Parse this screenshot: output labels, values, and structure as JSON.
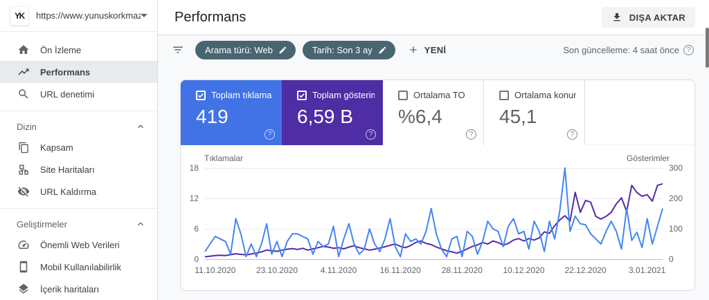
{
  "property": {
    "avatar_monogram": "YK",
    "url": "https://www.yunuskorkmaz.c..."
  },
  "header": {
    "title": "Performans",
    "export_label": "DIŞA AKTAR"
  },
  "sidebar": {
    "top_items": [
      {
        "label": "Ön İzleme"
      },
      {
        "label": "Performans"
      },
      {
        "label": "URL denetimi"
      }
    ],
    "sections": [
      {
        "title": "Dizin",
        "items": [
          {
            "label": "Kapsam"
          },
          {
            "label": "Site Haritaları"
          },
          {
            "label": "URL Kaldırma"
          }
        ]
      },
      {
        "title": "Geliştirmeler",
        "items": [
          {
            "label": "Önemli Web Verileri"
          },
          {
            "label": "Mobil Kullanılabilirlik"
          },
          {
            "label": "İçerik haritaları"
          }
        ]
      }
    ]
  },
  "filters": {
    "chips": [
      {
        "label": "Arama türü: Web"
      },
      {
        "label": "Tarih: Son 3 ay"
      }
    ],
    "new_label": "YENİ",
    "last_update": "Son güncelleme: 4 saat önce",
    "chip_color": "#4a6572"
  },
  "metrics": {
    "cards": [
      {
        "label": "Toplam tıklama s...",
        "value": "419",
        "checked": true,
        "color": "#4273e6"
      },
      {
        "label": "Toplam gösterim ...",
        "value": "6,59 B",
        "checked": true,
        "color": "#4f2da5"
      },
      {
        "label": "Ortalama TO",
        "value": "%6,4",
        "checked": false,
        "color": "#ffffff"
      },
      {
        "label": "Ortalama konum",
        "value": "45,1",
        "checked": false,
        "color": "#ffffff"
      }
    ]
  },
  "chart_data": {
    "type": "line",
    "left_axis": {
      "label": "Tıklamalar",
      "max": 18,
      "ticks": [
        0,
        6,
        12,
        18
      ]
    },
    "right_axis": {
      "label": "Gösterimler",
      "max": 300,
      "ticks": [
        0,
        100,
        200,
        300
      ]
    },
    "left_ticks_top_down": [
      "18",
      "12",
      "6",
      "0"
    ],
    "right_ticks_top_down": [
      "300",
      "200",
      "100",
      "0"
    ],
    "x_tick_labels": [
      "11.10.2020",
      "23.10.2020",
      "4.11.2020",
      "16.11.2020",
      "28.11.2020",
      "10.12.2020",
      "22.12.2020",
      "3.01.2021"
    ],
    "x_tick_indices": [
      2,
      14,
      26,
      38,
      50,
      62,
      74,
      86
    ],
    "grid": true,
    "legend_position": "none",
    "series": [
      {
        "name": "Tıklamalar",
        "axis": "left",
        "color": "#4285f4",
        "values": [
          1.5,
          3,
          4.5,
          4,
          3.5,
          1,
          8,
          5,
          0.5,
          3,
          0.5,
          3,
          7,
          1,
          3.5,
          0.5,
          3.5,
          5,
          5,
          4.5,
          4,
          1,
          3.5,
          2.5,
          3,
          6.5,
          0.5,
          4,
          7,
          3,
          1,
          2,
          6,
          3,
          1.5,
          4,
          8,
          2.5,
          0.5,
          5,
          3.5,
          4,
          3,
          5.5,
          10,
          5,
          2,
          0.5,
          4,
          4.5,
          0.5,
          5.5,
          4.5,
          1,
          3.5,
          7.5,
          6,
          5.5,
          2.5,
          6.5,
          8,
          5,
          5.5,
          2,
          7.5,
          5.5,
          1.5,
          7.5,
          4,
          9.5,
          18,
          5.5,
          8.5,
          7,
          6.8,
          5,
          4,
          3,
          5.5,
          7.5,
          5.5,
          2,
          10,
          3.7,
          5.3,
          2.3,
          8,
          3,
          6.5,
          10
        ]
      },
      {
        "name": "Gösterimler",
        "axis": "right",
        "color": "#5429a8",
        "values": [
          8,
          10,
          12,
          13,
          12,
          15,
          18,
          16,
          14,
          17,
          20,
          24,
          30,
          28,
          26,
          30,
          33,
          35,
          32,
          36,
          30,
          34,
          38,
          42,
          40,
          36,
          38,
          34,
          40,
          44,
          38,
          34,
          30,
          33,
          37,
          41,
          46,
          50,
          42,
          38,
          45,
          55,
          60,
          52,
          48,
          40,
          34,
          28,
          24,
          20,
          26,
          34,
          42,
          47,
          55,
          50,
          60,
          55,
          46,
          52,
          63,
          68,
          60,
          68,
          63,
          70,
          90,
          85,
          110,
          129,
          143,
          125,
          220,
          154,
          193,
          188,
          141,
          132,
          141,
          154,
          182,
          202,
          157,
          243,
          219,
          207,
          212,
          191,
          243,
          248
        ]
      }
    ],
    "totals": {
      "clicks": "419",
      "impressions": "6,59 B",
      "ctr": "%6,4",
      "position": "45,1"
    }
  }
}
